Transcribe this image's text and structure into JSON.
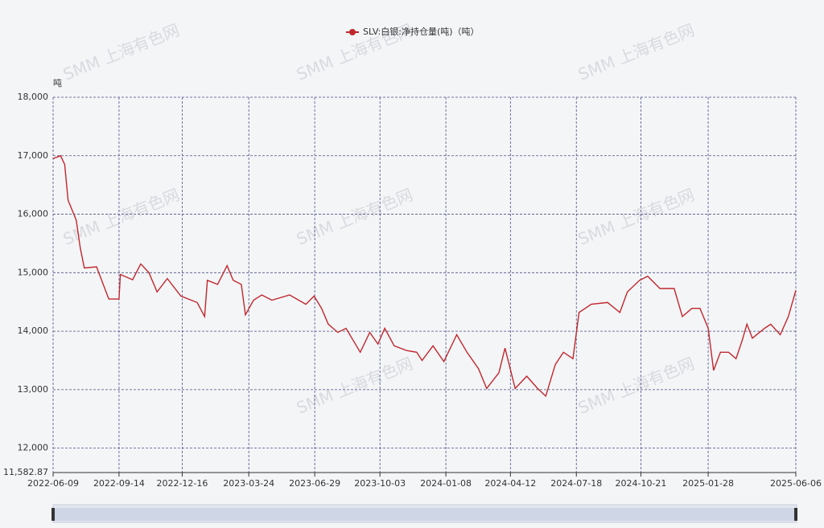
{
  "chart_data": {
    "type": "line",
    "watermark": "SMM 上海有色网",
    "y_unit": "吨",
    "x": [
      "2022-06-09",
      "2022-06-20",
      "2022-06-26",
      "2022-07-01",
      "2022-07-13",
      "2022-07-19",
      "2022-07-25",
      "2022-08-12",
      "2022-08-30",
      "2022-09-14",
      "2022-09-16",
      "2022-10-04",
      "2022-10-16",
      "2022-10-28",
      "2022-11-09",
      "2022-11-24",
      "2022-12-14",
      "2023-01-07",
      "2023-01-18",
      "2023-01-22",
      "2023-02-06",
      "2023-02-20",
      "2023-03-01",
      "2023-03-13",
      "2023-03-19",
      "2023-03-31",
      "2023-04-12",
      "2023-04-27",
      "2023-05-23",
      "2023-06-16",
      "2023-06-28",
      "2023-07-09",
      "2023-07-19",
      "2023-08-02",
      "2023-08-14",
      "2023-09-04",
      "2023-09-18",
      "2023-09-30",
      "2023-10-10",
      "2023-10-24",
      "2023-11-11",
      "2023-11-26",
      "2023-12-04",
      "2023-12-20",
      "2024-01-05",
      "2024-01-24",
      "2024-02-08",
      "2024-02-25",
      "2024-03-08",
      "2024-03-26",
      "2024-04-04",
      "2024-04-19",
      "2024-05-06",
      "2024-05-22",
      "2024-06-03",
      "2024-06-17",
      "2024-06-29",
      "2024-07-13",
      "2024-07-22",
      "2024-08-09",
      "2024-09-02",
      "2024-09-20",
      "2024-10-01",
      "2024-10-19",
      "2024-10-31",
      "2024-11-18",
      "2024-12-09",
      "2024-12-21",
      "2025-01-04",
      "2025-01-16",
      "2025-01-28",
      "2025-02-05",
      "2025-02-15",
      "2025-02-27",
      "2025-03-10",
      "2025-03-19",
      "2025-03-26",
      "2025-04-03",
      "2025-04-21",
      "2025-04-30",
      "2025-05-14",
      "2025-05-26",
      "2025-06-06"
    ],
    "series": [
      {
        "name": "SLV:白银:净持仓量(吨)（吨）",
        "color": "#c0272d",
        "values": [
          16950,
          17000,
          16850,
          16240,
          15900,
          15420,
          15080,
          15100,
          14550,
          14550,
          14970,
          14880,
          15150,
          15000,
          14670,
          14900,
          14600,
          14490,
          14250,
          14870,
          14800,
          15120,
          14870,
          14800,
          14280,
          14530,
          14620,
          14530,
          14620,
          14460,
          14600,
          14390,
          14120,
          13980,
          14050,
          13640,
          13980,
          13780,
          14050,
          13750,
          13670,
          13640,
          13500,
          13750,
          13480,
          13940,
          13640,
          13360,
          13020,
          13290,
          13710,
          13020,
          13230,
          13020,
          12890,
          13430,
          13640,
          13530,
          14320,
          14460,
          14490,
          14320,
          14670,
          14870,
          14940,
          14730,
          14730,
          14250,
          14390,
          14390,
          14050,
          13330,
          13640,
          13640,
          13530,
          13840,
          14120,
          13880,
          14050,
          14120,
          13940,
          14250,
          14700
        ]
      }
    ],
    "xlim": [
      "2022-06-09",
      "2025-06-06"
    ],
    "xticks": [
      "2022-06-09",
      "2022-09-14",
      "2022-12-16",
      "2023-03-24",
      "2023-06-29",
      "2023-10-03",
      "2024-01-08",
      "2024-04-12",
      "2024-07-18",
      "2024-10-21",
      "2025-01-28",
      "2025-06-06"
    ],
    "ylim": [
      11582.87,
      18000
    ],
    "yticks": [
      {
        "value": 11582.87,
        "label": "11,582.87"
      },
      {
        "value": 12000,
        "label": "12,000"
      },
      {
        "value": 13000,
        "label": "13,000"
      },
      {
        "value": 14000,
        "label": "14,000"
      },
      {
        "value": 15000,
        "label": "15,000"
      },
      {
        "value": 16000,
        "label": "16,000"
      },
      {
        "value": 17000,
        "label": "17,000"
      },
      {
        "value": 18000,
        "label": "18,000"
      }
    ],
    "grid": true,
    "legend": "top"
  }
}
